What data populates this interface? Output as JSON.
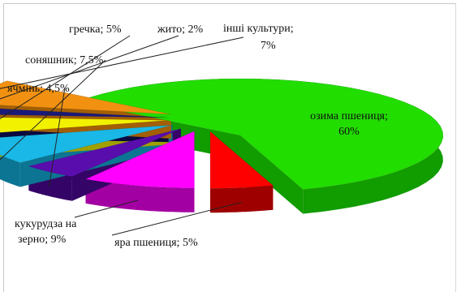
{
  "chart_data": {
    "type": "pie",
    "three_d": true,
    "exploded": true,
    "legend": "none",
    "slices": [
      {
        "name": "озима пшениця",
        "value": 60,
        "label": "озима пшениця;",
        "value_label": "60%",
        "color": "#22dd00",
        "side_color": "#119c00"
      },
      {
        "name": "яра пшениця",
        "value": 5,
        "label": "яра пшениця; 5%",
        "color": "#ff0000",
        "side_color": "#9e0000"
      },
      {
        "name": "кукурудза на зерно",
        "value": 9,
        "label": "кукурудза на",
        "label2": "зерно; 9%",
        "color": "#ff00ff",
        "side_color": "#a300a3"
      },
      {
        "name": "ячмінь",
        "value": 4.5,
        "label": "ячмінь; 4,5%",
        "color": "#5a0dad",
        "side_color": "#340566"
      },
      {
        "name": "соняшник",
        "value": 7.5,
        "label": "соняшник; 7,5%",
        "color": "#19b8e6",
        "side_color": "#0c7593"
      },
      {
        "name": "гречка",
        "value": 5,
        "label": "гречка; 5%",
        "color": "#f2f200",
        "side_color": "#a0a000"
      },
      {
        "name": "жито",
        "value": 2,
        "label": "жито; 2%",
        "color": "#1a1a7a",
        "side_color": "#0a0a40"
      },
      {
        "name": "інші культури",
        "value": 7,
        "label": "інші культури;",
        "label2": "7%",
        "color": "#f29111",
        "side_color": "#a35f05"
      }
    ]
  }
}
